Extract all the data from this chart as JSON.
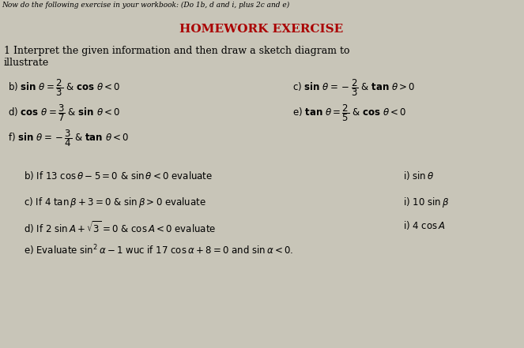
{
  "background_color": "#c8c5b8",
  "top_text": "Now do the following exercise in your workbook: (Do 1b, d and i, plus 2c and e)",
  "title": "HOMEWORK EXERCISE",
  "title_color": "#aa0000",
  "intro_line1": "1 Interpret the given information and then draw a sketch diagram to",
  "intro_line2": "illustrate",
  "left_items": [
    "b) sin θ = 2/3  & cos θ < 0",
    "d) cos θ = 3/7  & sin θ < 0",
    "f) sin θ = – 3/4  & tan θ < 0"
  ],
  "right_items": [
    "c) sin θ = – 2/3  & tan θ > 0",
    "e) tan θ = 2/5  & cos θ < 0"
  ],
  "part2_left": [
    "b) If 13 cos θ – 5 = 0 & sin θ < 0 evaluate",
    "c) If 4 tan β + 3 = 0 & sin β > 0 evaluate",
    "d) If 2 sin A + √3 = 0 & cos A < 0 evaluate",
    "e) Evaluate sin²α – 1 wuc if 17 cos α + 8 = 0 and sin α < 0."
  ],
  "part2_right": [
    "i) sin θ",
    "i) 10 sin β",
    "i) 4 cos A"
  ]
}
